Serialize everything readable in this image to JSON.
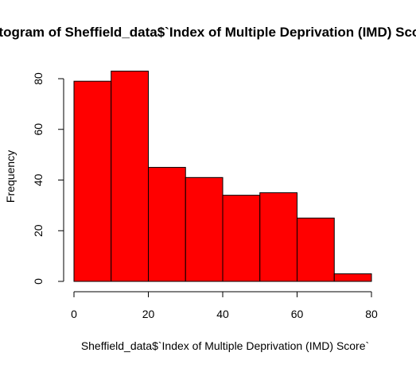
{
  "chart_data": {
    "type": "bar",
    "title": "Histogram of Sheffield_data$`Index of Multiple Deprivation (IMD) Score`",
    "xlabel": "Sheffield_data$`Index of Multiple Deprivation (IMD) Score`",
    "ylabel": "Frequency",
    "bins": [
      {
        "from": 0,
        "to": 10,
        "value": 79
      },
      {
        "from": 10,
        "to": 20,
        "value": 83
      },
      {
        "from": 20,
        "to": 30,
        "value": 45
      },
      {
        "from": 30,
        "to": 40,
        "value": 41
      },
      {
        "from": 40,
        "to": 50,
        "value": 34
      },
      {
        "from": 50,
        "to": 60,
        "value": 35
      },
      {
        "from": 60,
        "to": 70,
        "value": 25
      },
      {
        "from": 70,
        "to": 80,
        "value": 3
      }
    ],
    "xlim": [
      0,
      80
    ],
    "ylim": [
      0,
      80
    ],
    "xticks": [
      "0",
      "20",
      "40",
      "60",
      "80"
    ],
    "yticks": [
      "0",
      "20",
      "40",
      "60",
      "80"
    ],
    "bar_color": "#FF0000",
    "bar_border_color": "#000000",
    "grid": false,
    "legend": "none"
  }
}
